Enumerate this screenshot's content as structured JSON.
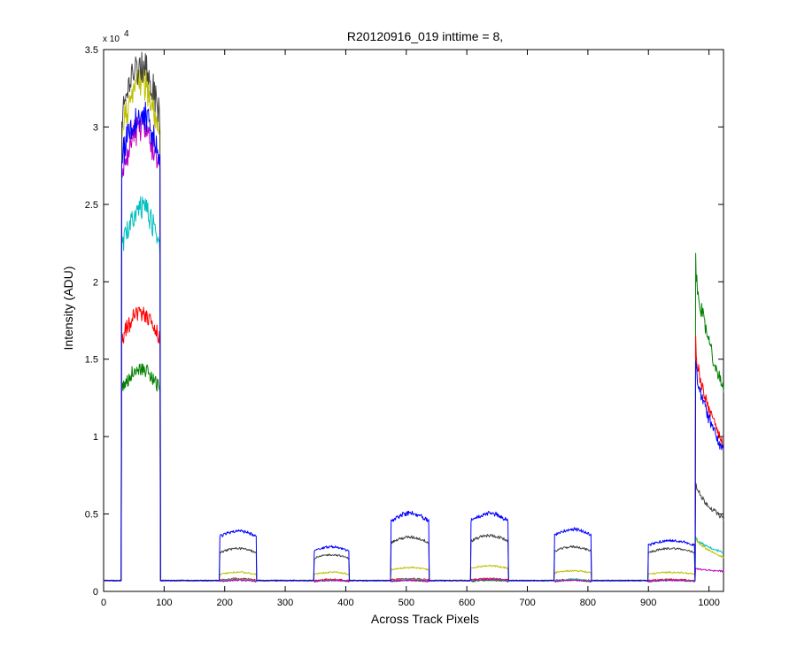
{
  "chart_data": {
    "type": "line",
    "title": "R20120916_019 inttime = 8,",
    "xlabel": "Across Track Pixels",
    "ylabel": "Intensity (ADU)",
    "y_multiplier_label": "x 10",
    "y_multiplier_exponent": "4",
    "xlim": [
      0,
      1024
    ],
    "ylim": [
      0,
      35000
    ],
    "x_ticks": [
      0,
      100,
      200,
      300,
      400,
      500,
      600,
      700,
      800,
      900,
      1000
    ],
    "y_ticks": [
      0,
      5000,
      10000,
      15000,
      20000,
      25000,
      30000,
      35000
    ],
    "y_tick_labels": [
      "0",
      "0.5",
      "1",
      "1.5",
      "2",
      "2.5",
      "3",
      "3.5"
    ],
    "grid": false,
    "baseline": 700,
    "segments": [
      [
        30,
        93
      ],
      [
        192,
        252
      ],
      [
        348,
        405
      ],
      [
        475,
        537
      ],
      [
        607,
        668
      ],
      [
        745,
        805
      ],
      [
        900,
        976
      ],
      [
        978,
        1024
      ]
    ],
    "series": [
      {
        "color": "#008000",
        "levels": [
          14000,
          750,
          700,
          700,
          700,
          700,
          700,
          21500
        ],
        "end_level": 13000
      },
      {
        "color": "#ff0000",
        "levels": [
          17500,
          800,
          750,
          800,
          800,
          750,
          750,
          16000
        ],
        "end_level": 9500
      },
      {
        "color": "#00bfbf",
        "levels": [
          24000,
          750,
          700,
          750,
          750,
          750,
          700,
          3500
        ],
        "end_level": 2500
      },
      {
        "color": "#bf00bf",
        "levels": [
          29000,
          700,
          700,
          700,
          750,
          700,
          700,
          1500
        ],
        "end_level": 1300
      },
      {
        "color": "#bfbf00",
        "levels": [
          32000,
          1200,
          1200,
          1500,
          1600,
          1300,
          1200,
          3500
        ],
        "end_level": 2200
      },
      {
        "color": "#404040",
        "levels": [
          33000,
          2700,
          2300,
          3400,
          3500,
          2800,
          2700,
          7000
        ],
        "end_level": 4700
      },
      {
        "color": "#0000ff",
        "levels": [
          30000,
          3800,
          2800,
          4900,
          4900,
          3900,
          3200,
          15000
        ],
        "end_level": 9000
      }
    ]
  }
}
